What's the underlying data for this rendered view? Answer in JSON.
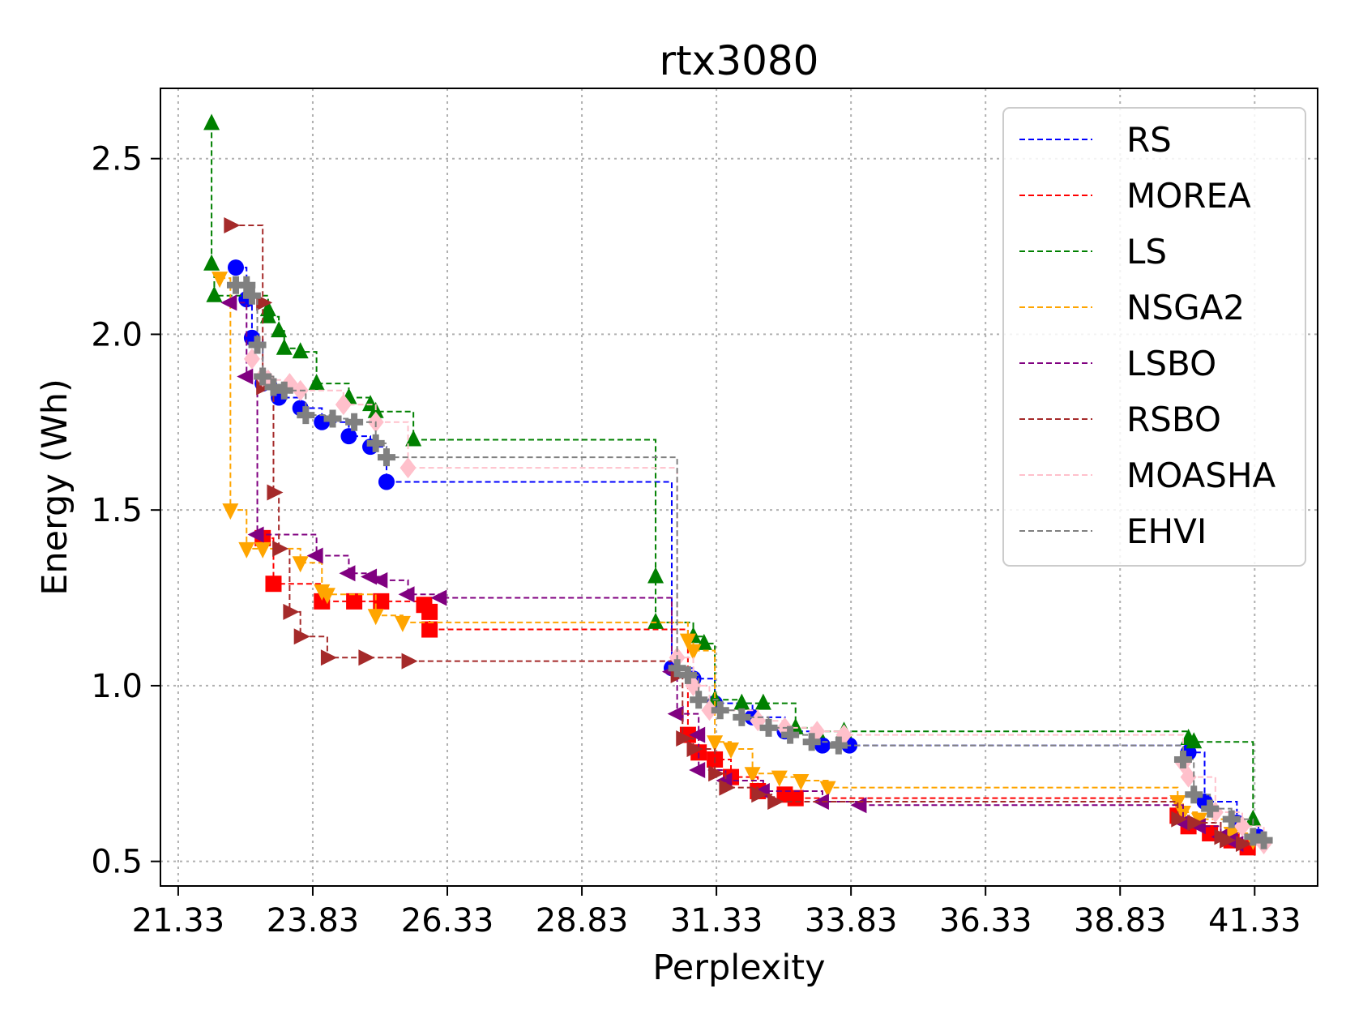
{
  "chart_data": {
    "type": "scatter",
    "title": "rtx3080",
    "xlabel": "Perplexity",
    "ylabel": "Energy (Wh)",
    "xlim": [
      21.0,
      42.5
    ],
    "ylim": [
      0.43,
      2.7
    ],
    "xticks": [
      21.33,
      23.83,
      26.33,
      28.83,
      31.33,
      33.83,
      36.33,
      38.83,
      41.33
    ],
    "xtick_labels": [
      "21.33",
      "23.83",
      "26.33",
      "28.83",
      "31.33",
      "33.83",
      "36.33",
      "38.83",
      "41.33"
    ],
    "yticks": [
      0.5,
      1.0,
      1.5,
      2.0,
      2.5
    ],
    "ytick_labels": [
      "0.5",
      "1.0",
      "1.5",
      "2.0",
      "2.5"
    ],
    "grid": true,
    "legend_position": "top-right",
    "series": [
      {
        "name": "RS",
        "color": "#0000ff",
        "marker": "circle",
        "points": [
          [
            22.4,
            2.19
          ],
          [
            22.6,
            2.1
          ],
          [
            22.7,
            1.99
          ],
          [
            22.9,
            1.86
          ],
          [
            23.2,
            1.82
          ],
          [
            23.6,
            1.79
          ],
          [
            24.0,
            1.75
          ],
          [
            24.5,
            1.71
          ],
          [
            24.9,
            1.68
          ],
          [
            25.2,
            1.58
          ],
          [
            30.5,
            1.05
          ],
          [
            30.9,
            1.02
          ],
          [
            31.3,
            0.95
          ],
          [
            32.0,
            0.91
          ],
          [
            32.6,
            0.87
          ],
          [
            33.3,
            0.83
          ],
          [
            33.8,
            0.83
          ],
          [
            40.1,
            0.81
          ],
          [
            40.4,
            0.67
          ],
          [
            41.0,
            0.61
          ],
          [
            41.4,
            0.57
          ]
        ]
      },
      {
        "name": "MOREA",
        "color": "#ff0000",
        "marker": "square",
        "points": [
          [
            22.9,
            1.42
          ],
          [
            23.1,
            1.29
          ],
          [
            24.0,
            1.24
          ],
          [
            24.6,
            1.24
          ],
          [
            25.1,
            1.24
          ],
          [
            25.9,
            1.23
          ],
          [
            26.0,
            1.21
          ],
          [
            26.0,
            1.16
          ],
          [
            30.8,
            0.86
          ],
          [
            31.0,
            0.81
          ],
          [
            31.3,
            0.79
          ],
          [
            31.6,
            0.74
          ],
          [
            32.1,
            0.7
          ],
          [
            32.6,
            0.69
          ],
          [
            32.8,
            0.68
          ],
          [
            39.9,
            0.63
          ],
          [
            40.1,
            0.6
          ],
          [
            40.5,
            0.58
          ],
          [
            40.9,
            0.56
          ],
          [
            41.2,
            0.54
          ]
        ]
      },
      {
        "name": "LS",
        "color": "#008000",
        "marker": "triangle-up",
        "points": [
          [
            21.95,
            2.6
          ],
          [
            21.95,
            2.2
          ],
          [
            22.0,
            2.11
          ],
          [
            23.0,
            2.07
          ],
          [
            23.0,
            2.05
          ],
          [
            23.2,
            2.01
          ],
          [
            23.3,
            1.96
          ],
          [
            23.6,
            1.95
          ],
          [
            23.9,
            1.86
          ],
          [
            24.5,
            1.82
          ],
          [
            24.9,
            1.8
          ],
          [
            25.0,
            1.78
          ],
          [
            25.7,
            1.7
          ],
          [
            30.2,
            1.31
          ],
          [
            30.2,
            1.18
          ],
          [
            30.9,
            1.14
          ],
          [
            31.1,
            1.12
          ],
          [
            31.3,
            0.96
          ],
          [
            31.8,
            0.95
          ],
          [
            32.2,
            0.95
          ],
          [
            32.8,
            0.88
          ],
          [
            33.2,
            0.87
          ],
          [
            33.7,
            0.87
          ],
          [
            40.1,
            0.85
          ],
          [
            40.2,
            0.84
          ],
          [
            41.3,
            0.62
          ]
        ]
      },
      {
        "name": "NSGA2",
        "color": "#ffa500",
        "marker": "triangle-down",
        "points": [
          [
            22.1,
            2.16
          ],
          [
            22.3,
            1.5
          ],
          [
            22.6,
            1.39
          ],
          [
            22.9,
            1.39
          ],
          [
            23.6,
            1.35
          ],
          [
            24.0,
            1.27
          ],
          [
            24.1,
            1.26
          ],
          [
            25.0,
            1.2
          ],
          [
            25.5,
            1.18
          ],
          [
            30.8,
            1.13
          ],
          [
            30.9,
            1.1
          ],
          [
            31.3,
            0.84
          ],
          [
            31.6,
            0.82
          ],
          [
            32.0,
            0.75
          ],
          [
            32.5,
            0.74
          ],
          [
            32.9,
            0.73
          ],
          [
            33.4,
            0.71
          ],
          [
            39.9,
            0.67
          ],
          [
            40.0,
            0.64
          ],
          [
            40.3,
            0.62
          ],
          [
            40.9,
            0.58
          ],
          [
            41.3,
            0.56
          ]
        ]
      },
      {
        "name": "LSBO",
        "color": "#800080",
        "marker": "triangle-left",
        "points": [
          [
            22.3,
            2.09
          ],
          [
            22.6,
            1.88
          ],
          [
            22.8,
            1.43
          ],
          [
            23.9,
            1.37
          ],
          [
            24.5,
            1.32
          ],
          [
            24.9,
            1.31
          ],
          [
            25.1,
            1.3
          ],
          [
            25.6,
            1.26
          ],
          [
            26.2,
            1.25
          ],
          [
            30.5,
            1.04
          ],
          [
            30.6,
            0.92
          ],
          [
            31.0,
            0.86
          ],
          [
            31.0,
            0.76
          ],
          [
            31.5,
            0.73
          ],
          [
            32.2,
            0.7
          ],
          [
            33.3,
            0.67
          ],
          [
            34.0,
            0.66
          ],
          [
            40.0,
            0.61
          ],
          [
            40.3,
            0.6
          ],
          [
            40.7,
            0.57
          ],
          [
            40.9,
            0.56
          ],
          [
            41.0,
            0.55
          ]
        ]
      },
      {
        "name": "RSBO",
        "color": "#a52a2a",
        "marker": "triangle-right",
        "points": [
          [
            22.3,
            2.31
          ],
          [
            22.9,
            2.09
          ],
          [
            22.9,
            1.85
          ],
          [
            23.1,
            1.55
          ],
          [
            23.2,
            1.39
          ],
          [
            23.4,
            1.21
          ],
          [
            23.6,
            1.14
          ],
          [
            24.1,
            1.08
          ],
          [
            24.8,
            1.08
          ],
          [
            25.6,
            1.07
          ],
          [
            30.6,
            1.03
          ],
          [
            30.7,
            0.85
          ],
          [
            30.9,
            0.82
          ],
          [
            31.3,
            0.75
          ],
          [
            31.5,
            0.71
          ],
          [
            32.1,
            0.69
          ],
          [
            32.4,
            0.67
          ],
          [
            39.9,
            0.62
          ],
          [
            40.2,
            0.61
          ],
          [
            40.7,
            0.57
          ],
          [
            40.8,
            0.56
          ],
          [
            41.1,
            0.55
          ]
        ]
      },
      {
        "name": "MOASHA",
        "color": "#ffc0cb",
        "marker": "diamond",
        "points": [
          [
            22.7,
            1.93
          ],
          [
            22.9,
            1.88
          ],
          [
            23.0,
            1.87
          ],
          [
            23.4,
            1.86
          ],
          [
            23.6,
            1.84
          ],
          [
            24.4,
            1.8
          ],
          [
            25.0,
            1.75
          ],
          [
            25.6,
            1.62
          ],
          [
            30.6,
            1.08
          ],
          [
            30.9,
            1.0
          ],
          [
            31.2,
            0.93
          ],
          [
            32.1,
            0.9
          ],
          [
            32.6,
            0.88
          ],
          [
            33.2,
            0.87
          ],
          [
            33.7,
            0.86
          ],
          [
            40.0,
            0.78
          ],
          [
            40.1,
            0.74
          ],
          [
            40.6,
            0.64
          ],
          [
            41.1,
            0.6
          ],
          [
            41.5,
            0.55
          ]
        ]
      },
      {
        "name": "EHVI",
        "color": "#808080",
        "marker": "plus",
        "points": [
          [
            22.4,
            2.14
          ],
          [
            22.6,
            2.14
          ],
          [
            22.7,
            2.11
          ],
          [
            22.8,
            1.97
          ],
          [
            22.9,
            1.88
          ],
          [
            23.1,
            1.85
          ],
          [
            23.3,
            1.84
          ],
          [
            23.7,
            1.77
          ],
          [
            24.2,
            1.76
          ],
          [
            24.6,
            1.75
          ],
          [
            25.0,
            1.69
          ],
          [
            25.2,
            1.65
          ],
          [
            30.6,
            1.05
          ],
          [
            30.8,
            1.03
          ],
          [
            31.0,
            0.96
          ],
          [
            31.4,
            0.93
          ],
          [
            31.8,
            0.91
          ],
          [
            32.3,
            0.88
          ],
          [
            32.7,
            0.86
          ],
          [
            33.1,
            0.84
          ],
          [
            33.6,
            0.83
          ],
          [
            40.0,
            0.79
          ],
          [
            40.2,
            0.69
          ],
          [
            40.5,
            0.65
          ],
          [
            40.9,
            0.62
          ],
          [
            41.3,
            0.57
          ],
          [
            41.5,
            0.56
          ]
        ]
      }
    ]
  }
}
